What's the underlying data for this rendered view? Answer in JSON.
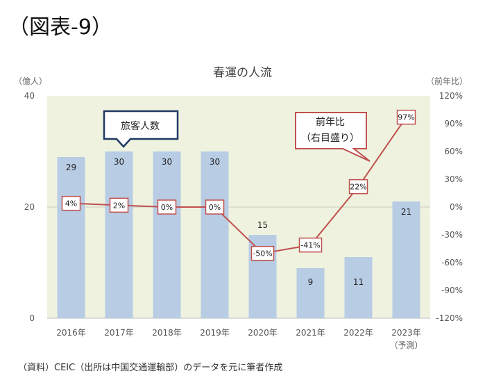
{
  "figure_label": "（図表-9）",
  "source_note": "（資料）CEIC（出所は中国交通運輸部）のデータを元に筆者作成",
  "colors": {
    "plot_bg": "#eef2df",
    "bar": "#b8cce4",
    "line": "#c0504d",
    "bar_callout_border": "#1f3864"
  },
  "chart_data": {
    "type": "bar",
    "title": "春運の人流",
    "categories": [
      "2016年",
      "2017年",
      "2018年",
      "2019年",
      "2020年",
      "2021年",
      "2022年",
      "2023年"
    ],
    "category_notes": [
      "",
      "",
      "",
      "",
      "",
      "",
      "",
      "（予測）"
    ],
    "series": [
      {
        "name": "旅客人数",
        "type": "bar",
        "axis": "left",
        "values": [
          29,
          30,
          30,
          30,
          15,
          9,
          11,
          21
        ]
      },
      {
        "name": "前年比（右目盛り）",
        "type": "line",
        "axis": "right",
        "values": [
          4,
          2,
          0,
          0,
          -50,
          -41,
          22,
          97
        ],
        "labels": [
          "4%",
          "2%",
          "0%",
          "0%",
          "-50%",
          "-41%",
          "22%",
          "97%"
        ]
      }
    ],
    "yleft": {
      "unit": "（億人）",
      "ylim": [
        0,
        40
      ],
      "ticks": [
        "0",
        "20",
        "40"
      ]
    },
    "yright": {
      "unit": "（前年比）",
      "ylim": [
        -120,
        120
      ],
      "ticks": [
        "120%",
        "90%",
        "60%",
        "30%",
        "0%",
        "-30%",
        "-60%",
        "-90%",
        "-120%"
      ]
    },
    "callouts": {
      "bar": "旅客人数",
      "line_1": "前年比",
      "line_2": "（右目盛り）"
    }
  }
}
